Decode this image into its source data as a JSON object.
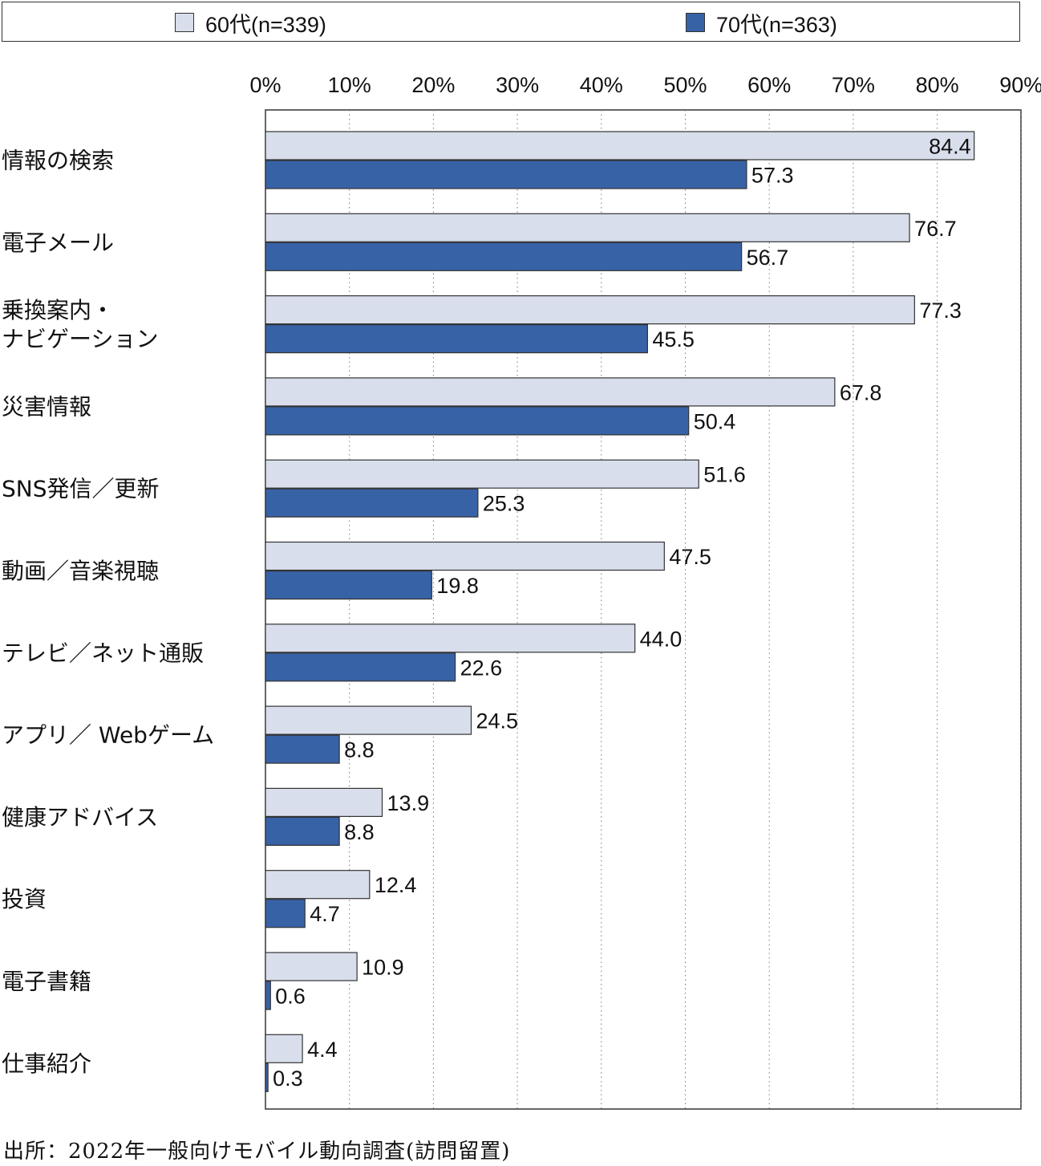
{
  "legend": {
    "items": [
      {
        "label": "60代(n=339)",
        "color": "#d9deec"
      },
      {
        "label": "70代(n=363)",
        "color": "#3762a6"
      }
    ]
  },
  "source": "出所：2022年一般向けモバイル動向調査(訪問留置)",
  "chart_data": {
    "type": "bar",
    "orientation": "horizontal",
    "categories": [
      "情報の検索",
      "電子メール",
      "乗換案内・\nナビゲーション",
      "災害情報",
      "SNS発信／更新",
      "動画／音楽視聴",
      "テレビ／ネット通販",
      "アプリ／ Webゲーム",
      "健康アドバイス",
      "投資",
      "電子書籍",
      "仕事紹介"
    ],
    "series": [
      {
        "name": "60代(n=339)",
        "color": "#d9deec",
        "values": [
          84.4,
          76.7,
          77.3,
          67.8,
          51.6,
          47.5,
          44.0,
          24.5,
          13.9,
          12.4,
          10.9,
          4.4
        ],
        "labels": [
          "84.4",
          "76.7",
          "77.3",
          "67.8",
          "51.6",
          "47.5",
          "44.0",
          "24.5",
          "13.9",
          "12.4",
          "10.9",
          "4.4"
        ]
      },
      {
        "name": "70代(n=363)",
        "color": "#3762a6",
        "values": [
          57.3,
          56.7,
          45.5,
          50.4,
          25.3,
          19.8,
          22.6,
          8.8,
          8.8,
          4.7,
          0.6,
          0.3
        ],
        "labels": [
          "57.3",
          "56.7",
          "45.5",
          "50.4",
          "25.3",
          "19.8",
          "22.6",
          "8.8",
          "8.8",
          "4.7",
          "0.6",
          "0.3"
        ]
      }
    ],
    "x_ticks": [
      "0%",
      "10%",
      "20%",
      "30%",
      "40%",
      "50%",
      "60%",
      "70%",
      "80%",
      "90%"
    ],
    "xlim": [
      0,
      90
    ],
    "grid": true,
    "legend_position": "top"
  }
}
